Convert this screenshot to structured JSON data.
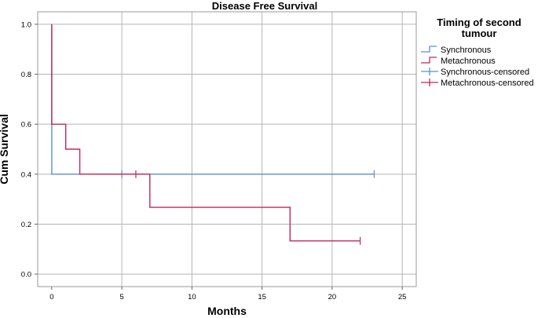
{
  "chart_data": {
    "type": "line",
    "subtype": "kaplan-meier-step",
    "title": "Disease Free Survival",
    "xlabel": "Months",
    "ylabel": "Cum Survival",
    "xlim": [
      -1,
      26
    ],
    "ylim": [
      -0.05,
      1.05
    ],
    "x_ticks": [
      0,
      5,
      10,
      15,
      20,
      25
    ],
    "y_ticks": [
      0.0,
      0.2,
      0.4,
      0.6,
      0.8,
      1.0
    ],
    "x_tick_labels": [
      "0",
      "5",
      "10",
      "15",
      "20",
      "25"
    ],
    "y_tick_labels": [
      "0.0",
      "0.2",
      "0.4",
      "0.6",
      "0.8",
      "1.0"
    ],
    "grid": true,
    "legend": {
      "title": "Timing of second tumour",
      "title_lines": [
        "Timing of second",
        "tumour"
      ],
      "placement": "right",
      "entries": [
        "Synchronous",
        "Metachronous",
        "Synchronous-censored",
        "Metachronous-censored"
      ]
    },
    "series": [
      {
        "name": "Synchronous",
        "color": "#5b8fd6",
        "steps": [
          [
            0,
            1.0
          ],
          [
            0,
            0.4
          ],
          [
            23,
            0.4
          ]
        ],
        "censored": [
          [
            5,
            0.4
          ],
          [
            23,
            0.4
          ]
        ]
      },
      {
        "name": "Metachronous",
        "color": "#c0285a",
        "steps": [
          [
            0,
            1.0
          ],
          [
            0,
            0.6
          ],
          [
            1,
            0.6
          ],
          [
            1,
            0.5
          ],
          [
            2,
            0.5
          ],
          [
            2,
            0.4
          ],
          [
            7,
            0.4
          ],
          [
            7,
            0.267
          ],
          [
            17,
            0.267
          ],
          [
            17,
            0.133
          ],
          [
            22,
            0.133
          ]
        ],
        "censored": [
          [
            6,
            0.4
          ],
          [
            22,
            0.133
          ]
        ]
      }
    ]
  }
}
